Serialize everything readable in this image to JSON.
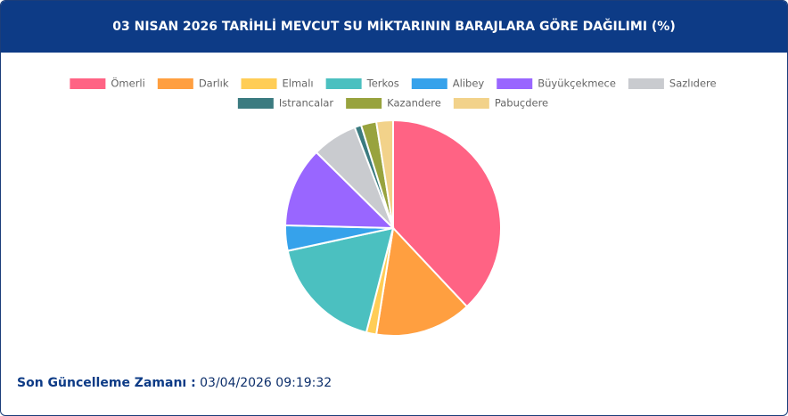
{
  "chart_data": {
    "type": "pie",
    "title": "03 NISAN 2026 TARİHLİ MEVCUT SU MİKTARININ BARAJLARA GÖRE DAĞILIMI (%)",
    "categories": [
      "Ömerli",
      "Darlık",
      "Elmalı",
      "Terkos",
      "Alibey",
      "Büyükçekmece",
      "Sazlıdere",
      "Istrancalar",
      "Kazandere",
      "Pabuçdere"
    ],
    "values": [
      38,
      14.5,
      1.5,
      17.6,
      3.8,
      12,
      6.8,
      1,
      2.3,
      2.5
    ],
    "colors": [
      "#ff6384",
      "#ff9f40",
      "#ffcd56",
      "#4bc0c0",
      "#36a2eb",
      "#9966ff",
      "#c9cbcf",
      "#3b7b80",
      "#98a33e",
      "#f2d28a"
    ],
    "legend": "top"
  },
  "footer": {
    "label": "Son Güncelleme Zamanı :",
    "value": "03/04/2026 09:19:32"
  }
}
